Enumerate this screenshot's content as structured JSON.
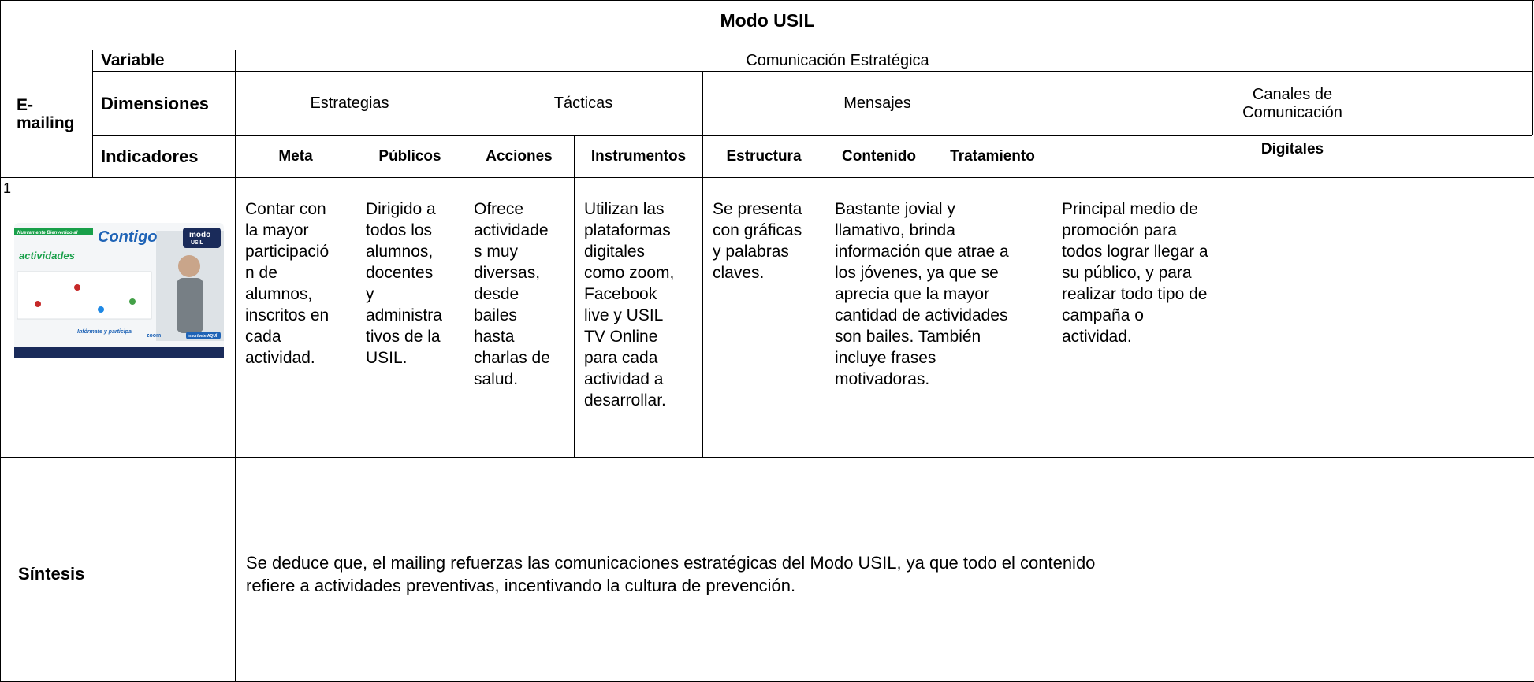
{
  "title": "Modo USIL",
  "side_label": [
    "E-",
    "mailing"
  ],
  "header": {
    "variable_label": "Variable",
    "variable": "Comunicación Estratégica",
    "dimensions_label": "Dimensiones",
    "dimensions": [
      [
        "Estrategias"
      ],
      [
        "Tácticas"
      ],
      [
        "Mensajes"
      ],
      [
        "Canales de",
        "Comunicación"
      ]
    ],
    "indicators_label": "Indicadores",
    "indicators": [
      "Meta",
      "Públicos",
      "Acciones",
      "Instrumentos",
      "Estructura",
      "Contenido",
      "Tratamiento",
      "Digitales"
    ]
  },
  "rows": [
    {
      "number": 1,
      "thumbnail": {
        "banner": "Nuevamente Bienvenido al",
        "brand": "Contigo",
        "heading": "actividades",
        "logo": [
          "modo",
          "USIL"
        ],
        "call": "Infórmate y participa",
        "zoom": "zoom",
        "button": "Inscríbete AQUÍ"
      },
      "cells": [
        [
          "Contar con",
          "la mayor",
          "participació",
          "n de",
          "alumnos,",
          "inscritos en",
          "cada",
          "actividad."
        ],
        [
          "Dirigido a",
          "todos los",
          "alumnos,",
          "docentes",
          "y",
          "administra",
          "tivos de la",
          "USIL."
        ],
        [
          "Ofrece",
          "actividade",
          "s muy",
          "diversas,",
          "desde",
          "bailes",
          "hasta",
          "charlas de",
          "salud."
        ],
        [
          "Utilizan las",
          "plataformas",
          "digitales",
          "como zoom,",
          "Facebook",
          "live y USIL",
          "TV Online",
          "para cada",
          "actividad a",
          "desarrollar."
        ],
        [
          "Se presenta",
          "con gráficas",
          "y palabras",
          "claves."
        ],
        [
          "Bastante jovial y",
          "llamativo, brinda",
          "información que atrae a",
          "los jóvenes, ya que se",
          "aprecia que la mayor",
          "cantidad de actividades",
          "son bailes. También",
          "incluye frases",
          "motivadoras."
        ],
        [
          "Principal medio de",
          "promoción para",
          "todos lograr llegar a",
          "su público, y para",
          "realizar todo tipo de",
          "campaña o",
          "actividad."
        ]
      ]
    }
  ],
  "synthesis": {
    "label": "Síntesis",
    "text": [
      "Se deduce que, el mailing refuerzas las comunicaciones estratégicas del Modo USIL, ya que todo el contenido",
      "refiere a actividades preventivas, incentivando la cultura de prevención."
    ]
  }
}
